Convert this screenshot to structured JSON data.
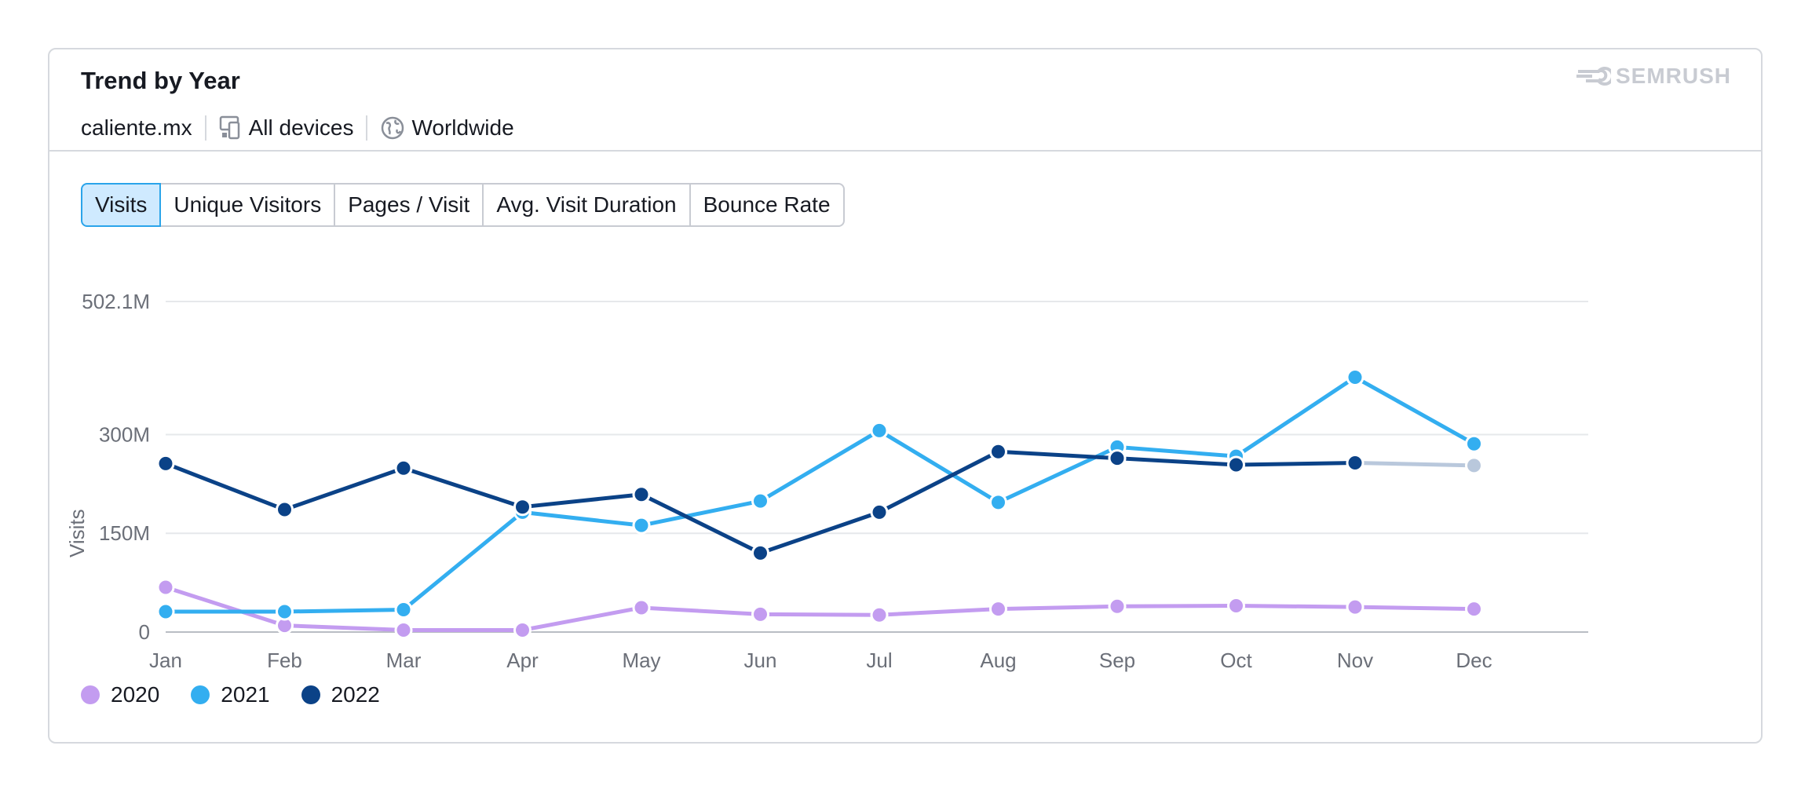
{
  "header": {
    "title": "Trend by Year",
    "domain": "caliente.mx",
    "devices_label": "All devices",
    "region_label": "Worldwide",
    "brand": "SEMRUSH"
  },
  "tabs": [
    {
      "label": "Visits",
      "active": true
    },
    {
      "label": "Unique Visitors",
      "active": false
    },
    {
      "label": "Pages / Visit",
      "active": false
    },
    {
      "label": "Avg. Visit Duration",
      "active": false
    },
    {
      "label": "Bounce Rate",
      "active": false
    }
  ],
  "colors": {
    "y2020": "#c39cf0",
    "y2021": "#33aef0",
    "y2022": "#0b4287",
    "forecast": "#b9c8dc",
    "grid": "#e6e8eb",
    "axis_text": "#6b6f78",
    "active_tab_bg": "#cfeaff",
    "active_tab_border": "#2aa4ea"
  },
  "chart_data": {
    "type": "line",
    "ylabel": "Visits",
    "xlabel": "",
    "categories": [
      "Jan",
      "Feb",
      "Mar",
      "Apr",
      "May",
      "Jun",
      "Jul",
      "Aug",
      "Sep",
      "Oct",
      "Nov",
      "Dec"
    ],
    "y_ticks": [
      {
        "value": 0,
        "label": "0"
      },
      {
        "value": 150000000,
        "label": "150M"
      },
      {
        "value": 300000000,
        "label": "300M"
      },
      {
        "value": 502100000,
        "label": "502.1M"
      }
    ],
    "ylim": [
      0,
      502100000
    ],
    "grid": true,
    "legend_position": "bottom-left",
    "series": [
      {
        "name": "2020",
        "color_key": "y2020",
        "values": [
          68000000,
          10000000,
          3000000,
          3000000,
          37000000,
          27000000,
          26000000,
          35000000,
          39000000,
          40000000,
          38000000,
          35000000
        ]
      },
      {
        "name": "2021",
        "color_key": "y2021",
        "values": [
          31000000,
          31000000,
          34000000,
          182000000,
          162000000,
          199000000,
          306000000,
          197000000,
          281000000,
          267000000,
          387000000,
          286000000
        ]
      },
      {
        "name": "2022",
        "color_key": "y2022",
        "values": [
          256000000,
          186000000,
          249000000,
          190000000,
          209000000,
          120000000,
          182000000,
          274000000,
          264000000,
          254000000,
          257000000,
          253000000
        ],
        "forecast_from_index": 10
      }
    ]
  }
}
